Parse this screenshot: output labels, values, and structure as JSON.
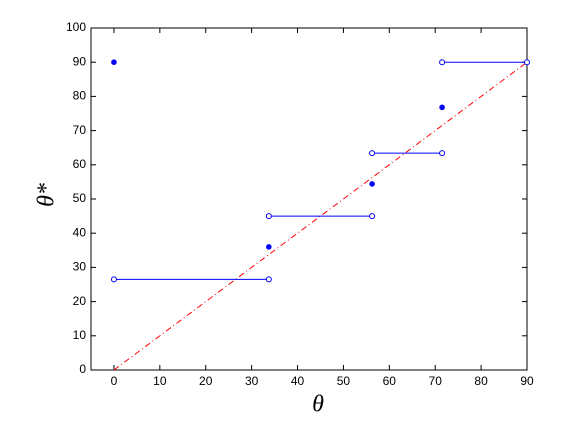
{
  "chart_data": {
    "type": "step",
    "xlabel": "θ",
    "ylabel": "θ*",
    "xlim": [
      -5,
      90
    ],
    "ylim": [
      0,
      100
    ],
    "xticks": [
      0,
      10,
      20,
      30,
      40,
      50,
      60,
      70,
      80,
      90
    ],
    "yticks": [
      0,
      10,
      20,
      30,
      40,
      50,
      60,
      70,
      80,
      90,
      100
    ],
    "segment_color": "#0000ff",
    "segments": [
      {
        "x": [
          0,
          33.75
        ],
        "values": [
          26.5,
          26.5
        ]
      },
      {
        "x": [
          33.75,
          56.25
        ],
        "values": [
          45,
          45
        ]
      },
      {
        "x": [
          56.25,
          71.5
        ],
        "values": [
          63.4,
          63.4
        ]
      },
      {
        "x": [
          71.5,
          90
        ],
        "values": [
          90,
          90
        ]
      }
    ],
    "points": {
      "color": "#0000ff",
      "x": [
        0,
        33.75,
        56.25,
        71.5
      ],
      "values": [
        90,
        36,
        54.4,
        76.8
      ]
    },
    "reference": {
      "color": "#ff0000",
      "x": [
        0,
        90
      ],
      "values": [
        0,
        90
      ]
    }
  }
}
